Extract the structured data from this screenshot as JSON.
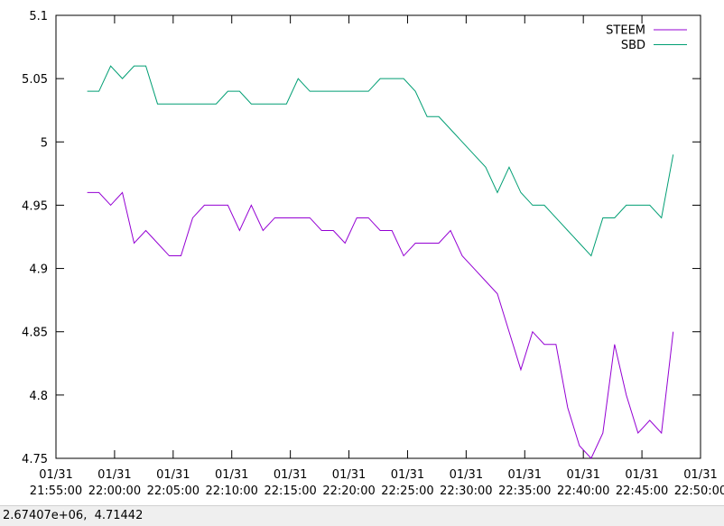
{
  "chart_data": {
    "type": "line",
    "x": [
      "01/31 21:57:40",
      "01/31 21:58:40",
      "01/31 21:59:40",
      "01/31 22:00:40",
      "01/31 22:01:40",
      "01/31 22:02:40",
      "01/31 22:03:40",
      "01/31 22:04:40",
      "01/31 22:05:40",
      "01/31 22:06:40",
      "01/31 22:07:40",
      "01/31 22:08:40",
      "01/31 22:09:40",
      "01/31 22:10:40",
      "01/31 22:11:40",
      "01/31 22:12:40",
      "01/31 22:13:40",
      "01/31 22:14:40",
      "01/31 22:15:40",
      "01/31 22:16:40",
      "01/31 22:17:40",
      "01/31 22:18:40",
      "01/31 22:19:40",
      "01/31 22:20:40",
      "01/31 22:21:40",
      "01/31 22:22:40",
      "01/31 22:23:40",
      "01/31 22:24:40",
      "01/31 22:25:40",
      "01/31 22:26:40",
      "01/31 22:27:40",
      "01/31 22:28:40",
      "01/31 22:29:40",
      "01/31 22:30:40",
      "01/31 22:31:40",
      "01/31 22:32:40",
      "01/31 22:33:40",
      "01/31 22:34:40",
      "01/31 22:35:40",
      "01/31 22:36:40",
      "01/31 22:37:40",
      "01/31 22:38:40",
      "01/31 22:39:40",
      "01/31 22:40:40",
      "01/31 22:41:40",
      "01/31 22:42:40",
      "01/31 22:43:40",
      "01/31 22:44:40",
      "01/31 22:45:40",
      "01/31 22:46:40",
      "01/31 22:47:40"
    ],
    "series": [
      {
        "name": "STEEM",
        "color": "#9400d3",
        "values": [
          4.96,
          4.96,
          4.95,
          4.96,
          4.92,
          4.93,
          4.92,
          4.91,
          4.91,
          4.94,
          4.95,
          4.95,
          4.95,
          4.93,
          4.95,
          4.93,
          4.94,
          4.94,
          4.94,
          4.94,
          4.93,
          4.93,
          4.92,
          4.94,
          4.94,
          4.93,
          4.93,
          4.91,
          4.92,
          4.92,
          4.92,
          4.93,
          4.91,
          4.9,
          4.89,
          4.88,
          4.85,
          4.82,
          4.85,
          4.84,
          4.84,
          4.79,
          4.76,
          4.75,
          4.77,
          4.84,
          4.8,
          4.77,
          4.78,
          4.77,
          4.85
        ]
      },
      {
        "name": "SBD",
        "color": "#009e73",
        "values": [
          5.04,
          5.04,
          5.06,
          5.05,
          5.06,
          5.06,
          5.03,
          5.03,
          5.03,
          5.03,
          5.03,
          5.03,
          5.04,
          5.04,
          5.03,
          5.03,
          5.03,
          5.03,
          5.05,
          5.04,
          5.04,
          5.04,
          5.04,
          5.04,
          5.04,
          5.05,
          5.05,
          5.05,
          5.04,
          5.02,
          5.02,
          5.01,
          5.0,
          4.99,
          4.98,
          4.96,
          4.98,
          4.96,
          4.95,
          4.95,
          4.94,
          4.93,
          4.92,
          4.91,
          4.94,
          4.94,
          4.95,
          4.95,
          4.95,
          4.94,
          4.99
        ]
      }
    ],
    "xlim": [
      "01/31 21:55:00",
      "01/31 22:50:00"
    ],
    "xticks": [
      "01/31 21:55:00",
      "01/31 22:00:00",
      "01/31 22:05:00",
      "01/31 22:10:00",
      "01/31 22:15:00",
      "01/31 22:20:00",
      "01/31 22:25:00",
      "01/31 22:30:00",
      "01/31 22:35:00",
      "01/31 22:40:00",
      "01/31 22:45:00",
      "01/31 22:50:00"
    ],
    "ylim": [
      4.75,
      5.1
    ],
    "yticks": [
      4.75,
      4.8,
      4.85,
      4.9,
      4.95,
      5,
      5.05,
      5.1
    ],
    "grid": false,
    "legend": "top-right"
  },
  "status": "2.67407e+06,  4.71442"
}
